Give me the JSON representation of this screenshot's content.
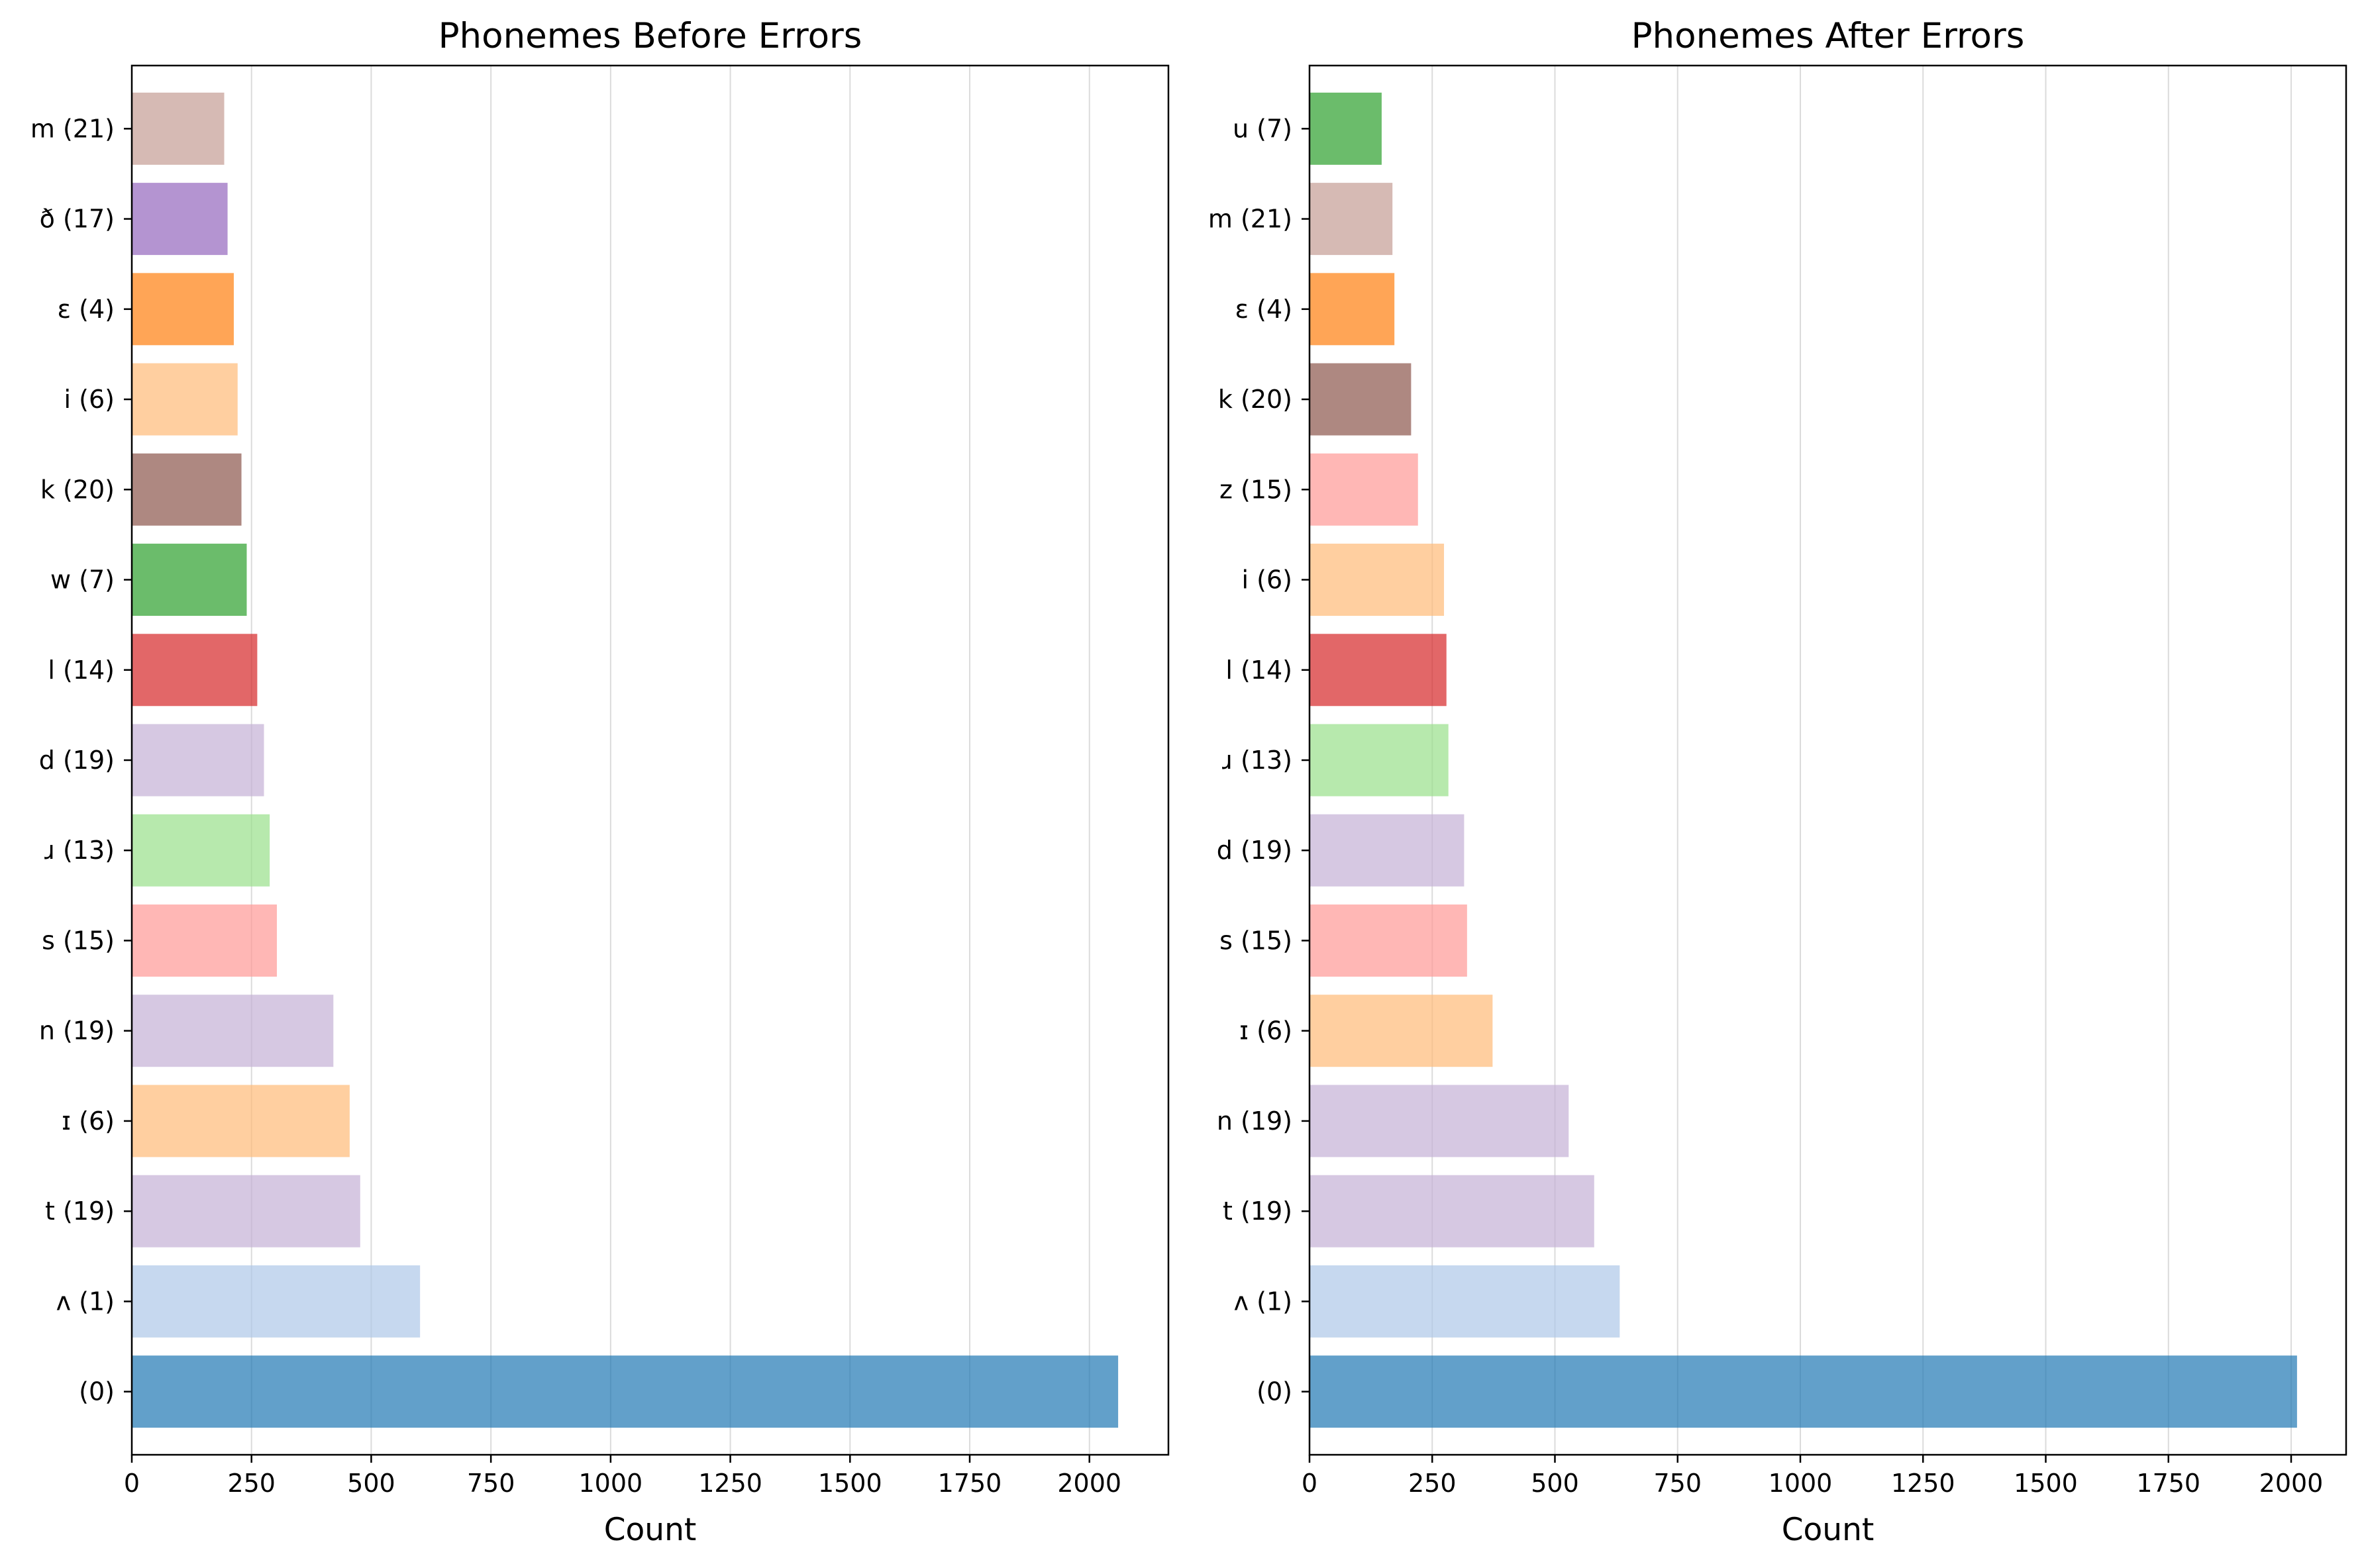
{
  "chart_data": [
    {
      "type": "bar",
      "orientation": "horizontal",
      "title": "Phonemes Before Errors",
      "xlabel": "Count",
      "ylabel": "",
      "xlim": [
        0,
        2165
      ],
      "xticks": [
        0,
        250,
        500,
        750,
        1000,
        1250,
        1500,
        1750,
        2000
      ],
      "grid": "vertical",
      "categories": [
        "(0)",
        "ʌ (1)",
        "t (19)",
        "ɪ (6)",
        "n (19)",
        "s (15)",
        "ɹ (13)",
        "d (19)",
        "l (14)",
        "w (7)",
        "k (20)",
        "i (6)",
        "ɛ (4)",
        "ð (17)",
        "m (21)"
      ],
      "values": [
        2060,
        602,
        477,
        455,
        421,
        303,
        288,
        276,
        262,
        240,
        229,
        221,
        213,
        200,
        193
      ],
      "colors": [
        "#1f77b4",
        "#aec7e8",
        "#c5b0d5",
        "#ffbb78",
        "#c5b0d5",
        "#ff9896",
        "#98df8a",
        "#c5b0d5",
        "#d62728",
        "#2ca02c",
        "#8c564b",
        "#ffbb78",
        "#ff7f0e",
        "#9467bd",
        "#c49c94"
      ]
    },
    {
      "type": "bar",
      "orientation": "horizontal",
      "title": "Phonemes After Errors",
      "xlabel": "Count",
      "ylabel": "",
      "xlim": [
        0,
        2112
      ],
      "xticks": [
        0,
        250,
        500,
        750,
        1000,
        1250,
        1500,
        1750,
        2000
      ],
      "grid": "vertical",
      "categories": [
        "(0)",
        "ʌ (1)",
        "t (19)",
        "n (19)",
        "ɪ (6)",
        "s (15)",
        "d (19)",
        "ɹ (13)",
        "l (14)",
        "i (6)",
        "z (15)",
        "k (20)",
        "ɛ (4)",
        "m (21)",
        "u (7)"
      ],
      "values": [
        2012,
        632,
        580,
        528,
        373,
        321,
        315,
        283,
        279,
        274,
        221,
        207,
        173,
        169,
        147
      ],
      "colors": [
        "#1f77b4",
        "#aec7e8",
        "#c5b0d5",
        "#c5b0d5",
        "#ffbb78",
        "#ff9896",
        "#c5b0d5",
        "#98df8a",
        "#d62728",
        "#ffbb78",
        "#ff9896",
        "#8c564b",
        "#ff7f0e",
        "#c49c94",
        "#2ca02c"
      ]
    }
  ]
}
